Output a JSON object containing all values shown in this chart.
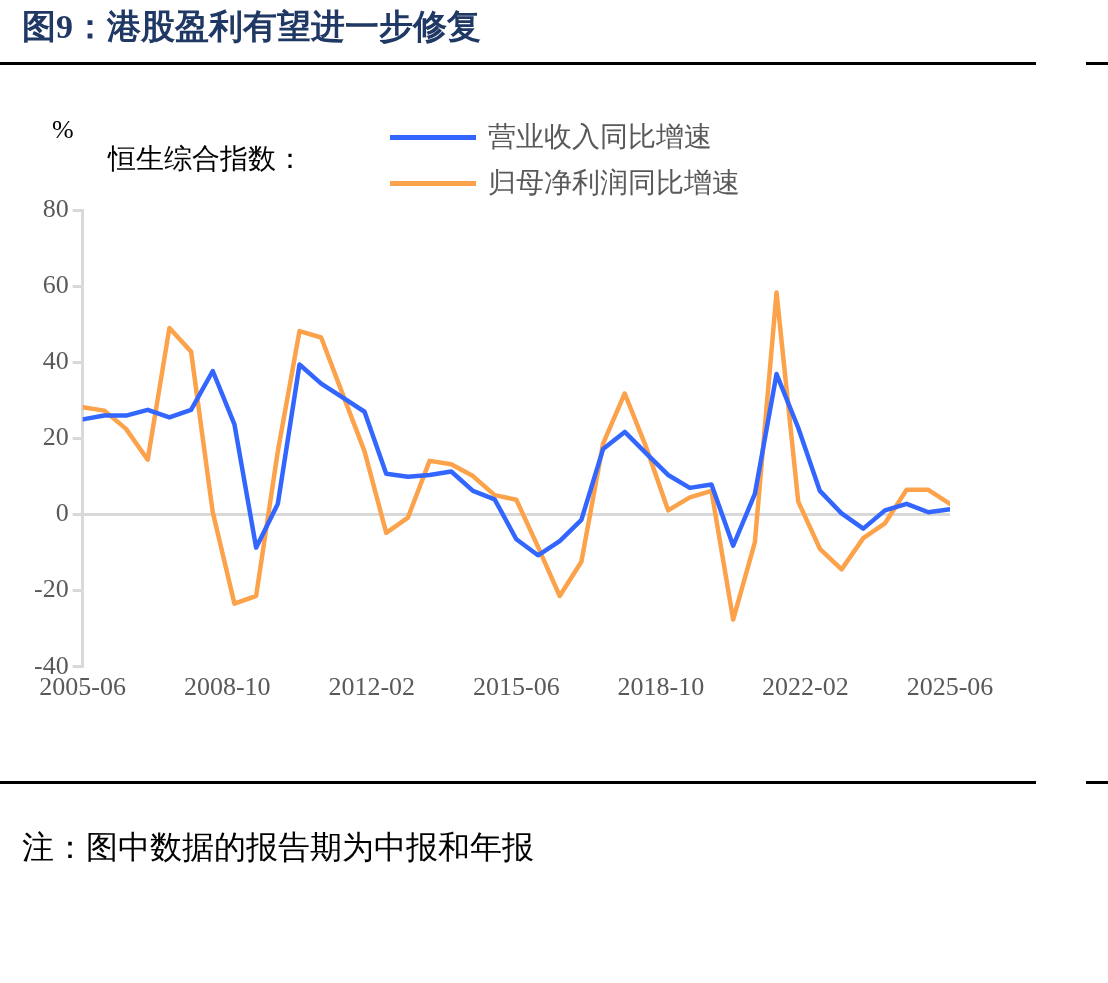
{
  "chart_data": {
    "type": "line",
    "title": "图9：港股盈利有望进一步修复",
    "ylabel": "%",
    "legend_title": "恒生综合指数：",
    "x": [
      "2005-06",
      "2005-12",
      "2006-06",
      "2006-12",
      "2007-06",
      "2007-12",
      "2008-06",
      "2008-12",
      "2009-06",
      "2009-12",
      "2010-06",
      "2010-12",
      "2011-06",
      "2011-12",
      "2012-06",
      "2012-12",
      "2013-06",
      "2013-12",
      "2014-06",
      "2014-12",
      "2015-06",
      "2015-12",
      "2016-06",
      "2016-12",
      "2017-06",
      "2017-12",
      "2018-06",
      "2018-12",
      "2019-06",
      "2019-12",
      "2020-06",
      "2020-12",
      "2021-06",
      "2021-12",
      "2022-06",
      "2022-12",
      "2023-06",
      "2023-12",
      "2024-06",
      "2024-12",
      "2025-06"
    ],
    "series": [
      {
        "name": "营业收入同比增速",
        "color": "#3366ff",
        "values": [
          25,
          26,
          26,
          27.5,
          25.5,
          27.5,
          37.7,
          23.7,
          -8.7,
          2.8,
          39.4,
          34.4,
          30.7,
          27,
          10.7,
          9.9,
          10.4,
          11.3,
          6.2,
          4,
          -6.5,
          -10.7,
          -7,
          -1.4,
          17.2,
          21.7,
          16,
          10.4,
          7,
          7.9,
          -8.2,
          5.4,
          36.9,
          22.8,
          6.2,
          0.3,
          -3.7,
          1.1,
          2.8,
          0.6,
          1.4
        ]
      },
      {
        "name": "归母净利润同比增速",
        "color": "#fba24b",
        "values": [
          28.2,
          27.3,
          22.5,
          14.4,
          49,
          42.8,
          0.6,
          -23.4,
          -21.4,
          16.6,
          48.2,
          46.5,
          31.5,
          16.6,
          -4.8,
          -0.8,
          14.1,
          13.2,
          10.1,
          5.1,
          3.9,
          -8.5,
          -21.4,
          -12.4,
          18.6,
          31.8,
          17.5,
          1.1,
          4.5,
          6.2,
          -27.6,
          -7.3,
          58.3,
          3.4,
          -9,
          -14.4,
          -6.2,
          -2.3,
          6.5,
          6.5,
          2.8
        ]
      }
    ],
    "xlim": [
      "2005-06",
      "2025-06"
    ],
    "xticks": [
      "2005-06",
      "2008-10",
      "2012-02",
      "2015-06",
      "2018-10",
      "2022-02",
      "2025-06"
    ],
    "ylim": [
      -40,
      80
    ],
    "yticks": [
      -40,
      -20,
      0,
      20,
      40,
      60,
      80
    ],
    "ref_lines": [
      {
        "axis": "y",
        "value": 0,
        "color": "#d9d9d9",
        "line_style": "solid"
      }
    ],
    "grid": false,
    "legend": "top",
    "marker": "none",
    "line_style": "solid",
    "annotations": [
      "注：图中数据的报告期为中报和年报"
    ]
  }
}
